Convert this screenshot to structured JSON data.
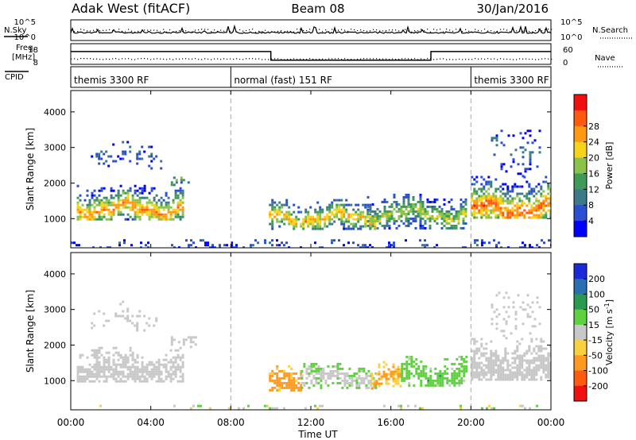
{
  "header": {
    "title": "Adak West (fitACF)",
    "beam": "Beam 08",
    "date": "30/Jan/2016"
  },
  "top_panels": {
    "nsky_label": "N.Sky",
    "nsearch_label": "N.Search",
    "count_ticks": [
      "10^5",
      "10^0"
    ],
    "freq_label": "Freq.",
    "freq_unit": "[MHz]",
    "freq_ticks": [
      "18",
      "8"
    ],
    "nave_label": "Nave",
    "nave_ticks": [
      "60",
      "0"
    ],
    "cpid_label": "CPID",
    "cpid_segments": [
      {
        "label": "themis 3300 RF",
        "start_hour": 0,
        "end_hour": 8
      },
      {
        "label": "normal (fast) 151 RF",
        "start_hour": 8,
        "end_hour": 20
      },
      {
        "label": "themis 3300 RF",
        "start_hour": 20,
        "end_hour": 24
      }
    ],
    "frequency_steps": [
      {
        "start_hour": 0,
        "end_hour": 10,
        "level": 0.62
      },
      {
        "start_hour": 10,
        "end_hour": 18,
        "level": 0.2
      },
      {
        "start_hour": 18,
        "end_hour": 24,
        "level": 0.62
      }
    ]
  },
  "axes": {
    "xlabel": "Time UT",
    "ylabel": "Slant Range [km]",
    "x_ticks": [
      "00:00",
      "04:00",
      "08:00",
      "12:00",
      "16:00",
      "20:00",
      "00:00"
    ],
    "x_hours": [
      0,
      4,
      8,
      12,
      16,
      20,
      24
    ],
    "y_ticks": [
      "1000",
      "2000",
      "3000",
      "4000"
    ],
    "y_values": [
      1000,
      2000,
      3000,
      4000
    ],
    "y_range": [
      180,
      4600
    ],
    "x_range": [
      0,
      24
    ],
    "dashed_lines_hours": [
      8,
      20
    ]
  },
  "power_colorbar": {
    "label": "Power [dB]",
    "ticks": [
      "4",
      "8",
      "12",
      "16",
      "20",
      "24",
      "28"
    ],
    "colors": [
      "#0000ff",
      "#2a4fd0",
      "#3c7a8a",
      "#3f9a58",
      "#8ac24a",
      "#f6d41c",
      "#ff9a10",
      "#ff5a10",
      "#f01010"
    ]
  },
  "velocity_colorbar": {
    "label": "Velocity [m s",
    "label_sup": "-1",
    "label_end": "]",
    "ticks": [
      "200",
      "100",
      "50",
      "15",
      "-15",
      "-50",
      "-100",
      "-200"
    ],
    "colors": [
      "#1a2ad8",
      "#2a6fb0",
      "#2a9a50",
      "#5fd040",
      "#c8c8c8",
      "#f8d040",
      "#ff9a20",
      "#ff5a10",
      "#f01010"
    ]
  },
  "chart_data": {
    "type": "heatmap",
    "title": "Adak West (fitACF)",
    "xlabel": "Time UT",
    "ylabel": "Slant Range [km]",
    "xlim": [
      0,
      24
    ],
    "ylim": [
      180,
      4600
    ],
    "panels": [
      {
        "name": "Power [dB]",
        "patches": [
          {
            "t0": 0.3,
            "t1": 5.6,
            "r0": 1000,
            "r1": 1950,
            "core": 1300,
            "val_core": 26,
            "val_edge": 6,
            "density": 0.85
          },
          {
            "t0": 1.0,
            "t1": 4.5,
            "r0": 2400,
            "r1": 3250,
            "core": 2800,
            "val_core": 10,
            "val_edge": 4,
            "density": 0.22
          },
          {
            "t0": 5.0,
            "t1": 5.9,
            "r0": 1900,
            "r1": 2250,
            "core": 2100,
            "val_core": 18,
            "val_edge": 6,
            "density": 0.6
          },
          {
            "t0": 9.9,
            "t1": 15.2,
            "r0": 700,
            "r1": 1550,
            "core": 1050,
            "val_core": 24,
            "val_edge": 6,
            "density": 0.85
          },
          {
            "t0": 14.8,
            "t1": 19.8,
            "r0": 750,
            "r1": 1700,
            "core": 1150,
            "val_core": 20,
            "val_edge": 6,
            "density": 0.8
          },
          {
            "t0": 20.0,
            "t1": 24.0,
            "r0": 1000,
            "r1": 2200,
            "core": 1300,
            "val_core": 28,
            "val_edge": 6,
            "density": 0.85
          },
          {
            "t0": 21.0,
            "t1": 23.5,
            "r0": 2200,
            "r1": 3500,
            "core": 3000,
            "val_core": 10,
            "val_edge": 4,
            "density": 0.2
          },
          {
            "t0": 0.0,
            "t1": 24.0,
            "r0": 200,
            "r1": 420,
            "core": 260,
            "val_core": 8,
            "val_edge": 4,
            "density": 0.35
          }
        ]
      },
      {
        "name": "Velocity [m s-1]",
        "patches": [
          {
            "t0": 0.3,
            "t1": 5.6,
            "r0": 1000,
            "r1": 1950,
            "core": 1300,
            "val_core": 0,
            "val_edge": 0,
            "density": 0.85
          },
          {
            "t0": 1.0,
            "t1": 4.5,
            "r0": 2400,
            "r1": 3250,
            "core": 2800,
            "val_core": 0,
            "val_edge": 0,
            "density": 0.2
          },
          {
            "t0": 5.0,
            "t1": 6.3,
            "r0": 1900,
            "r1": 2250,
            "core": 2100,
            "val_core": 0,
            "val_edge": 0,
            "density": 0.6
          },
          {
            "t0": 9.9,
            "t1": 11.5,
            "r0": 700,
            "r1": 1500,
            "core": 1050,
            "val_core": -80,
            "val_edge": -40,
            "density": 0.85
          },
          {
            "t0": 11.5,
            "t1": 15.2,
            "r0": 800,
            "r1": 1500,
            "core": 1100,
            "val_core": 0,
            "val_edge": 30,
            "density": 0.8
          },
          {
            "t0": 15.0,
            "t1": 16.5,
            "r0": 750,
            "r1": 1550,
            "core": 1100,
            "val_core": -60,
            "val_edge": -30,
            "density": 0.75
          },
          {
            "t0": 16.5,
            "t1": 19.8,
            "r0": 850,
            "r1": 1700,
            "core": 1200,
            "val_core": 40,
            "val_edge": 20,
            "density": 0.75
          },
          {
            "t0": 20.0,
            "t1": 24.0,
            "r0": 1000,
            "r1": 2200,
            "core": 1300,
            "val_core": 0,
            "val_edge": 0,
            "density": 0.85
          },
          {
            "t0": 21.0,
            "t1": 23.5,
            "r0": 2200,
            "r1": 3500,
            "core": 3000,
            "val_core": 0,
            "val_edge": 0,
            "density": 0.2
          },
          {
            "t0": 0.0,
            "t1": 24.0,
            "r0": 200,
            "r1": 320,
            "core": 250,
            "val_core": 30,
            "val_edge": -30,
            "density": 0.4
          }
        ]
      }
    ]
  }
}
